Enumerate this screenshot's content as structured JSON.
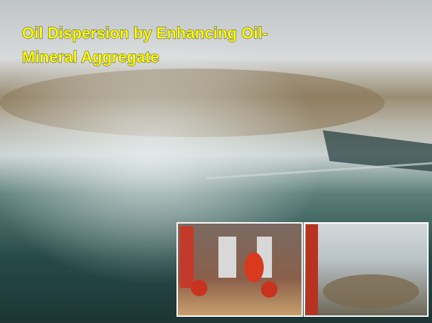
{
  "slide": {
    "title_lines": [
      "Oil Dispersion by Enhancing Oil-",
      "Mineral Aggregate"
    ]
  }
}
